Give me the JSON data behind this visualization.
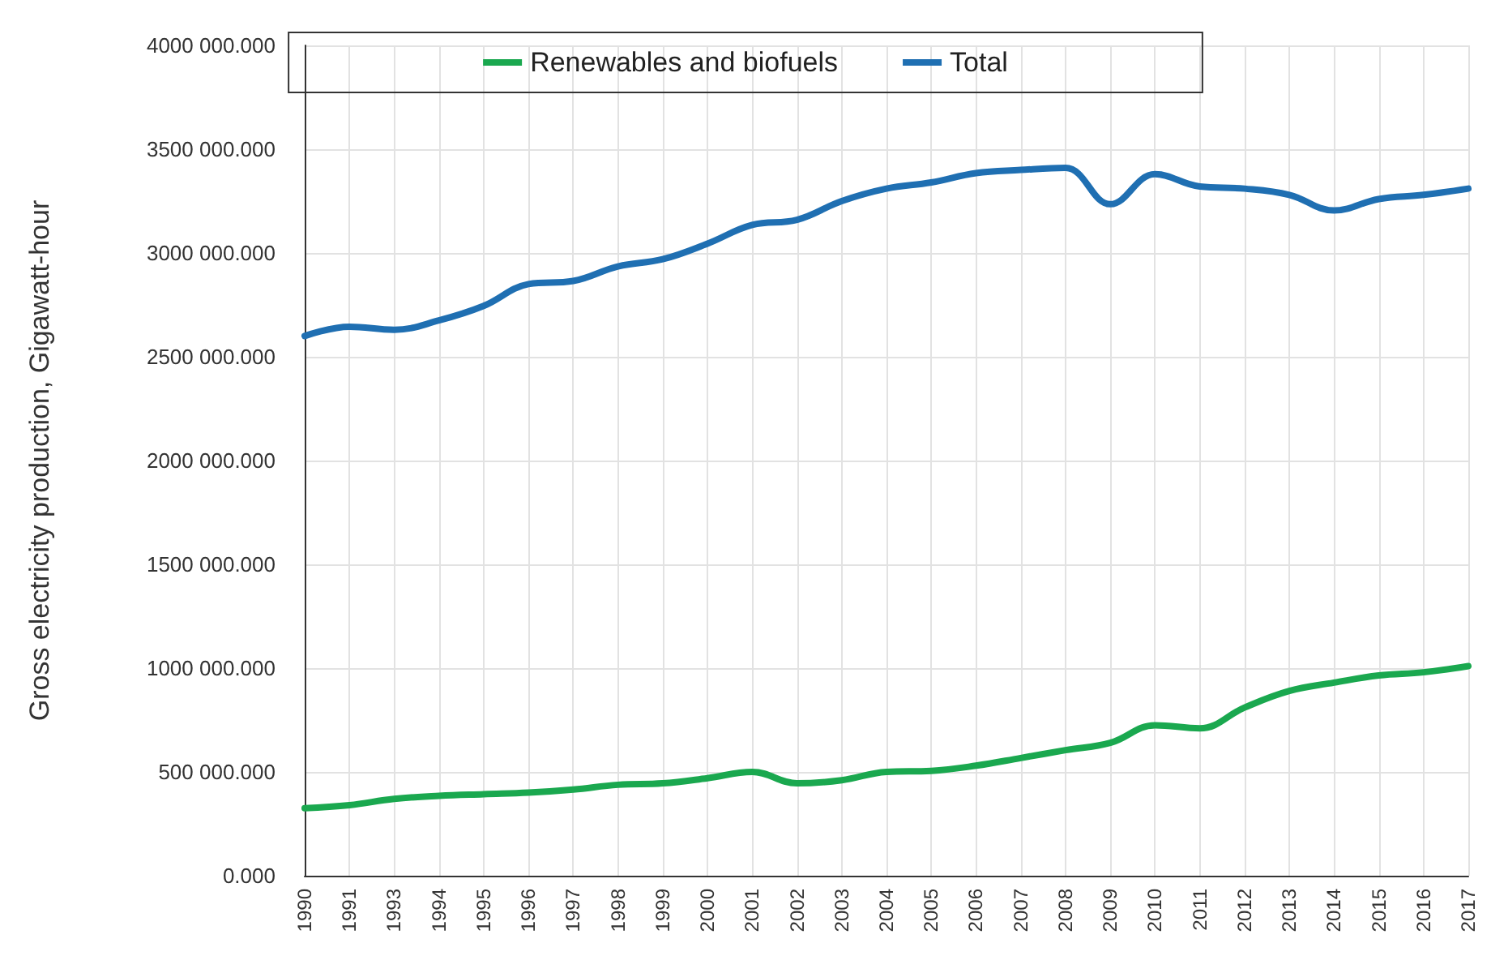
{
  "chart_data": {
    "type": "line",
    "ylabel": "Gross electricity production, Gigawatt-hour",
    "categories": [
      "1990",
      "1991",
      "1993",
      "1994",
      "1995",
      "1996",
      "1997",
      "1998",
      "1999",
      "2000",
      "2001",
      "2002",
      "2003",
      "2004",
      "2005",
      "2006",
      "2007",
      "2008",
      "2009",
      "2010",
      "2011",
      "2012",
      "2013",
      "2014",
      "2015",
      "2016",
      "2017"
    ],
    "series": [
      {
        "name": "Renewables and biofuels",
        "color": "#1aa84f",
        "values": [
          325000,
          340000,
          370000,
          385000,
          393000,
          400000,
          415000,
          438000,
          445000,
          470000,
          500000,
          445000,
          460000,
          500000,
          505000,
          530000,
          567000,
          605000,
          640000,
          725000,
          710000,
          810000,
          890000,
          930000,
          965000,
          980000,
          1010000
        ]
      },
      {
        "name": "Total",
        "color": "#1f6fb2",
        "values": [
          2600000,
          2645000,
          2630000,
          2675000,
          2745000,
          2850000,
          2865000,
          2935000,
          2970000,
          3045000,
          3135000,
          3160000,
          3250000,
          3310000,
          3340000,
          3385000,
          3400000,
          3410000,
          3235000,
          3380000,
          3320000,
          3310000,
          3280000,
          3205000,
          3260000,
          3280000,
          3310000
        ]
      }
    ],
    "ylim": [
      0,
      4000000
    ],
    "yticks": [
      {
        "value": 0,
        "label": "0.000"
      },
      {
        "value": 500000,
        "label": "500 000.000"
      },
      {
        "value": 1000000,
        "label": "1000 000.000"
      },
      {
        "value": 1500000,
        "label": "1500 000.000"
      },
      {
        "value": 2000000,
        "label": "2000 000.000"
      },
      {
        "value": 2500000,
        "label": "2500 000.000"
      },
      {
        "value": 3000000,
        "label": "3000 000.000"
      },
      {
        "value": 3500000,
        "label": "3500 000.000"
      },
      {
        "value": 4000000,
        "label": "4000 000.000"
      }
    ],
    "grid": true,
    "legend": "top",
    "marker": "none",
    "line_style": "solid"
  }
}
